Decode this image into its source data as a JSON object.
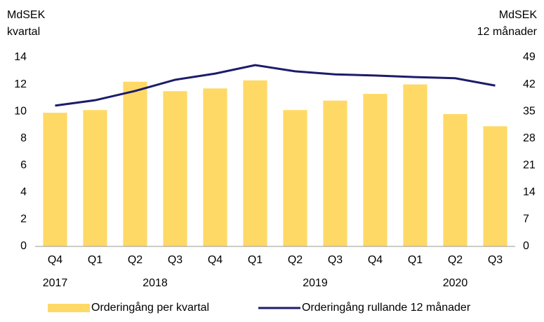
{
  "chart_data": {
    "type": "bar_line",
    "ylabel": [
      "MdSEK",
      "kvartal"
    ],
    "y2label": [
      "MdSEK",
      "12 månader"
    ],
    "categories": [
      "Q4",
      "Q1",
      "Q2",
      "Q3",
      "Q4",
      "Q1",
      "Q2",
      "Q3",
      "Q4",
      "Q1",
      "Q2",
      "Q3"
    ],
    "years": [
      "2017",
      "2018",
      "2018",
      "2018",
      "2018",
      "2019",
      "2019",
      "2019",
      "2019",
      "2020",
      "2020",
      "2020"
    ],
    "series": [
      {
        "name": "Orderingång per kvartal",
        "type": "bar",
        "color": "#ffd966",
        "axis": "y",
        "values": [
          9.9,
          10.1,
          12.2,
          11.5,
          11.7,
          12.3,
          10.1,
          10.8,
          11.3,
          12.0,
          9.8,
          8.9
        ]
      },
      {
        "name": "Orderingång rullande 12 månader",
        "type": "line",
        "color": "#1c1c6b",
        "axis": "y2",
        "values": [
          36.5,
          37.9,
          40.3,
          43.2,
          44.8,
          47.0,
          45.4,
          44.6,
          44.3,
          43.9,
          43.6,
          41.7
        ]
      }
    ],
    "ylim": [
      0,
      14
    ],
    "yticks": [
      0,
      2,
      4,
      6,
      8,
      10,
      12,
      14
    ],
    "y2lim": [
      0,
      49
    ],
    "y2ticks": [
      0,
      7,
      14,
      21,
      28,
      35,
      42,
      49
    ],
    "grid": false
  }
}
